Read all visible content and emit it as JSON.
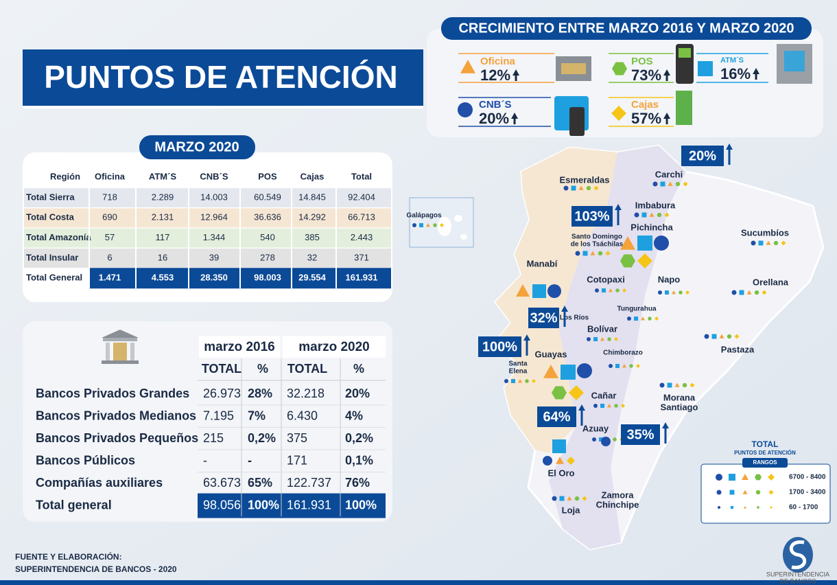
{
  "title": "PUNTOS DE ATENCIÓN",
  "growth": {
    "title": "CRECIMIENTO ENTRE MARZO 2016 Y MARZO 2020",
    "items": [
      {
        "label": "Oficina",
        "value": "12%"
      },
      {
        "label": "POS",
        "value": "73%"
      },
      {
        "label": "ATM´S",
        "value": "16%"
      },
      {
        "label": "CNB´S",
        "value": "20%"
      },
      {
        "label": "Cajas",
        "value": "57%"
      }
    ]
  },
  "table1": {
    "title": "MARZO 2020",
    "header": [
      "Región",
      "Oficina",
      "ATM´S",
      "CNB´S",
      "POS",
      "Cajas",
      "Total"
    ],
    "rows": [
      [
        "Total Sierra",
        "718",
        "2.289",
        "14.003",
        "60.549",
        "14.845",
        "92.404"
      ],
      [
        "Total Costa",
        "690",
        "2.131",
        "12.964",
        "36.636",
        "14.292",
        "66.713"
      ],
      [
        "Total Amazonía",
        "57",
        "117",
        "1.344",
        "540",
        "385",
        "2.443"
      ],
      [
        "Total Insular",
        "6",
        "16",
        "39",
        "278",
        "32",
        "371"
      ],
      [
        "Total General",
        "1.471",
        "4.553",
        "28.350",
        "98.003",
        "29.554",
        "161.931"
      ]
    ]
  },
  "table2": {
    "periods": [
      "marzo 2016",
      "marzo 2020"
    ],
    "subheader": [
      "TOTAL",
      "%",
      "TOTAL",
      "%"
    ],
    "rows": [
      [
        "Bancos Privados Grandes",
        "26.973",
        "28%",
        "32.218",
        "20%"
      ],
      [
        "Bancos Privados Medianos",
        "7.195",
        "7%",
        "6.430",
        "4%"
      ],
      [
        "Bancos Privados Pequeños",
        "215",
        "0,2%",
        "375",
        "0,2%"
      ],
      [
        "Bancos Públicos",
        "-",
        "-",
        "171",
        "0,1%"
      ],
      [
        "Compañías auxiliares",
        "63.673",
        "65%",
        "122.737",
        "76%"
      ],
      [
        "Total general",
        "98.056",
        "100%",
        "161.931",
        "100%"
      ]
    ]
  },
  "map": {
    "regions": [
      [
        "Esmeraldas"
      ],
      [
        "Carchi"
      ],
      [
        "Imbabura"
      ],
      [
        "Pichincha"
      ],
      [
        "Santo Domingo",
        "de los Tsáchilas"
      ],
      [
        "Sucumbíos"
      ],
      [
        "Manabí"
      ],
      [
        "Cotopaxi"
      ],
      [
        "Napo"
      ],
      [
        "Orellana"
      ],
      [
        "Tungurahua"
      ],
      [
        "Los Ríos"
      ],
      [
        "Bolívar"
      ],
      [
        "Pastaza"
      ],
      [
        "Chimborazo"
      ],
      [
        "Santa",
        "Elena"
      ],
      [
        "Guayas"
      ],
      [
        "Cañar"
      ],
      [
        "Morana",
        "Santiago"
      ],
      [
        "Azuay"
      ],
      [
        "El Oro"
      ],
      [
        "Zamora",
        "Chinchipe"
      ],
      [
        "Loja"
      ],
      [
        "Galápagos"
      ]
    ],
    "growth": [
      "20%",
      "103%",
      "32%",
      "100%",
      "64%",
      "35%"
    ]
  },
  "legend": {
    "title": "TOTAL",
    "subtitle": "PUNTOS DE ATENCIÓN",
    "label": "RANGOS",
    "ranges": [
      "6700 - 8400",
      "1700 - 3400",
      "60 - 1700"
    ]
  },
  "source": [
    "FUENTE Y ELABORACIÓN:",
    "SUPERINTENDENCIA DE BANCOS - 2020"
  ],
  "logo": [
    "SUPERINTENDENCIA",
    "DE BANCOS"
  ]
}
